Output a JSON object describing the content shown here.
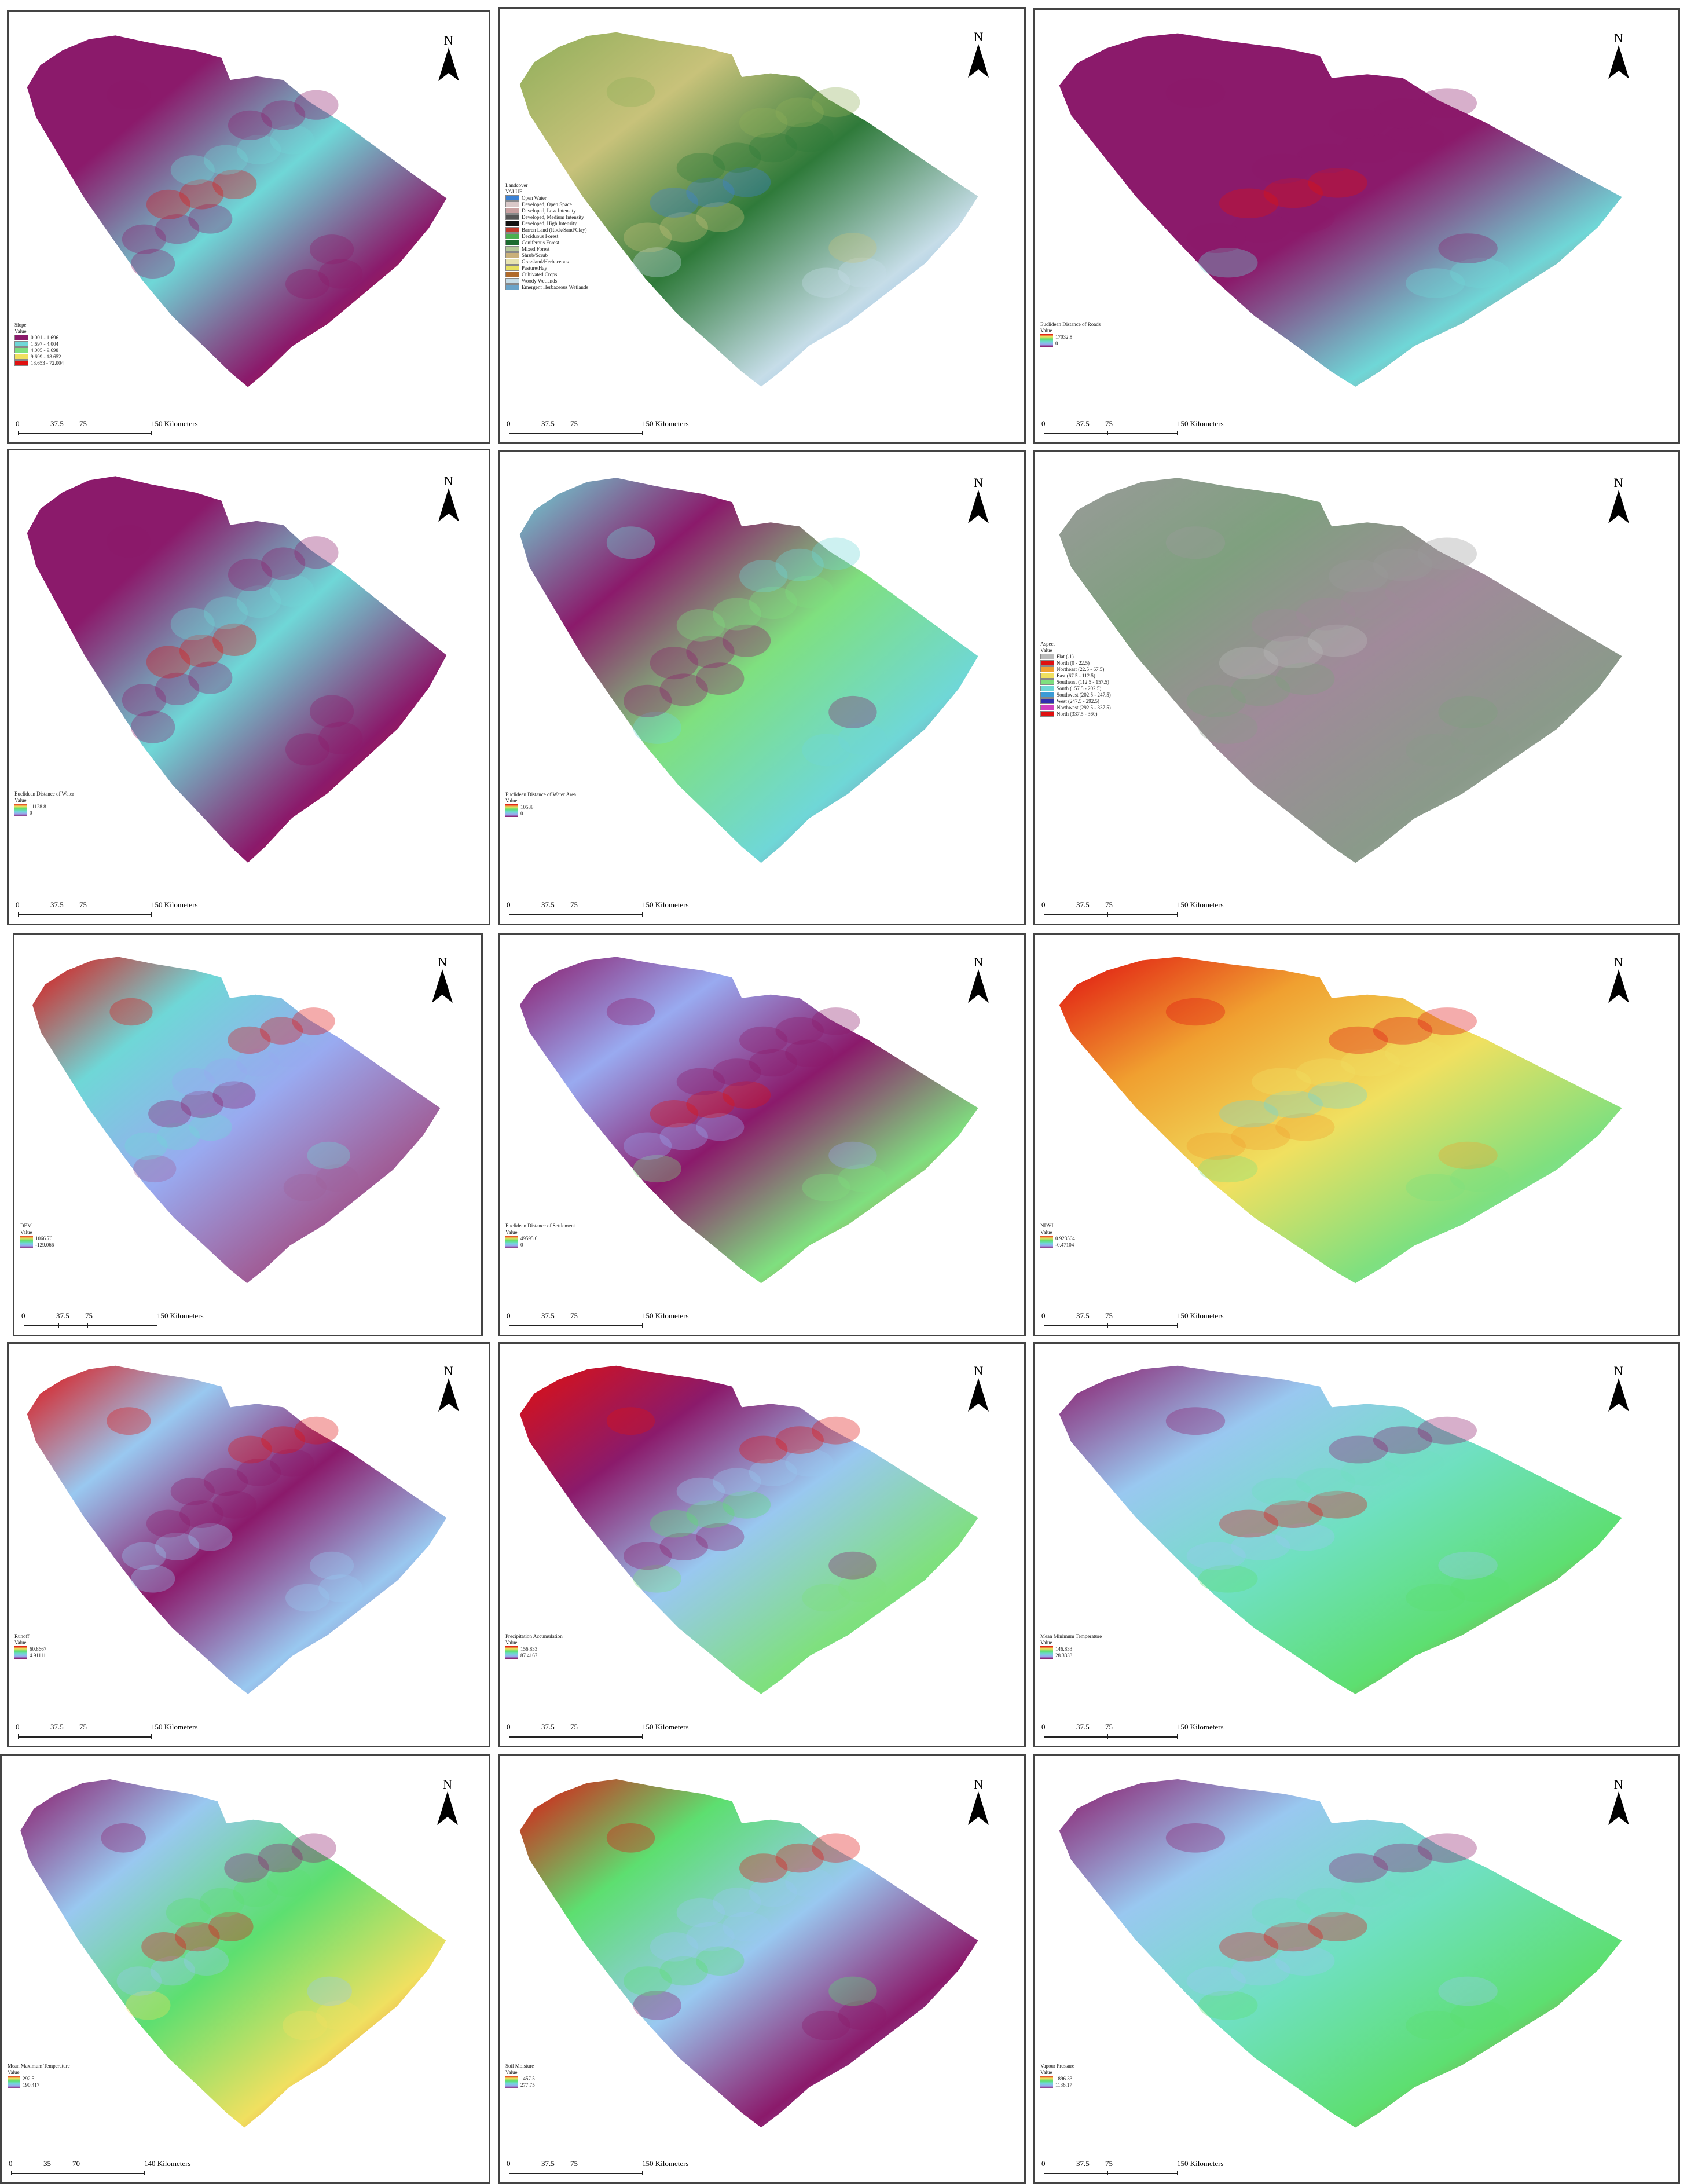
{
  "panels": [
    {
      "legend_title": "Slope",
      "legend_sub": "Value",
      "type": "classes",
      "classes": [
        {
          "label": "0.001 - 1.696",
          "color": "#8b1a6b"
        },
        {
          "label": "1.697 - 4.004",
          "color": "#6fd7d7"
        },
        {
          "label": "4.005 - 9.698",
          "color": "#7fe07f"
        },
        {
          "label": "9.699 - 18.652",
          "color": "#f0e060"
        },
        {
          "label": "18.653 - 72.004",
          "color": "#e01010"
        }
      ],
      "scale": [
        "0",
        "37.5",
        "75",
        "150 Kilometers"
      ],
      "palette": [
        "#8b1a6b",
        "#8b1a6b",
        "#6fd7d7",
        "#8b1a6b",
        "#e01010"
      ]
    },
    {
      "legend_title": "Landcover",
      "legend_sub": "VALUE",
      "type": "classes",
      "classes": [
        {
          "label": "Open Water",
          "color": "#3b82d6"
        },
        {
          "label": "Developed, Open Space",
          "color": "#d9c8c8"
        },
        {
          "label": "Developed, Low Intensity",
          "color": "#c8a0a0"
        },
        {
          "label": "Developed, Medium Intensity",
          "color": "#555555"
        },
        {
          "label": "Developed, High Intensity",
          "color": "#111111"
        },
        {
          "label": "Barren Land (Rock/Sand/Clay)",
          "color": "#c0392b"
        },
        {
          "label": "Deciduous Forest",
          "color": "#4caf50"
        },
        {
          "label": "Coniferous Forest",
          "color": "#1b6b2f"
        },
        {
          "label": "Mixed Forest",
          "color": "#b6c99a"
        },
        {
          "label": "Shrub/Scrub",
          "color": "#c9b07a"
        },
        {
          "label": "Grassland/Herbaceous",
          "color": "#e7e3b0"
        },
        {
          "label": "Pasture/Hay",
          "color": "#e6e060"
        },
        {
          "label": "Cultivated Crops",
          "color": "#b06a2b"
        },
        {
          "label": "Woody Wetlands",
          "color": "#c6dde8"
        },
        {
          "label": "Emergent Herbaceous Wetlands",
          "color": "#6aa3c8"
        }
      ],
      "scale": [
        "0",
        "37.5",
        "75",
        "150 Kilometers"
      ],
      "palette": [
        "#8fae5a",
        "#c8c27a",
        "#2f7a3a",
        "#c6dde8",
        "#3b82d6"
      ]
    },
    {
      "legend_title": "Euclidean Distance of Roads",
      "legend_sub": "Value",
      "type": "gradient",
      "high": "17032.8",
      "low": "0",
      "scale": [
        "0",
        "37.5",
        "75",
        "150 Kilometers"
      ],
      "palette": [
        "#8b1a6b",
        "#8b1a6b",
        "#8b1a6b",
        "#6fd7d7",
        "#e01010"
      ]
    },
    {
      "legend_title": "Euclidean Distance of Water",
      "legend_sub": "Value",
      "type": "gradient",
      "high": "11128.8",
      "low": "0",
      "scale": [
        "0",
        "37.5",
        "75",
        "150 Kilometers"
      ],
      "palette": [
        "#8b1a6b",
        "#8b1a6b",
        "#6fd7d7",
        "#8b1a6b",
        "#e01010"
      ]
    },
    {
      "legend_title": "Euclidean Distance of Water Area",
      "legend_sub": "Value",
      "type": "gradient",
      "high": "10538",
      "low": "0",
      "scale": [
        "0",
        "37.5",
        "75",
        "150 Kilometers"
      ],
      "palette": [
        "#6fd7d7",
        "#8b1a6b",
        "#7fe07f",
        "#6fd7d7",
        "#8b1a6b"
      ]
    },
    {
      "legend_title": "Aspect",
      "legend_sub": "Value",
      "type": "classes",
      "classes": [
        {
          "label": "Flat (-1)",
          "color": "#bbbbbb"
        },
        {
          "label": "North (0 - 22.5)",
          "color": "#e01010"
        },
        {
          "label": "Northeast (22.5 - 67.5)",
          "color": "#f0a030"
        },
        {
          "label": "East (67.5 - 112.5)",
          "color": "#f0e060"
        },
        {
          "label": "Southeast (112.5 - 157.5)",
          "color": "#7fe07f"
        },
        {
          "label": "South (157.5 - 202.5)",
          "color": "#6fd7d7"
        },
        {
          "label": "Southwest (202.5 - 247.5)",
          "color": "#3b9bd6"
        },
        {
          "label": "West (247.5 - 292.5)",
          "color": "#3030b0"
        },
        {
          "label": "Northwest (292.5 - 337.5)",
          "color": "#d040c0"
        },
        {
          "label": "North (337.5 - 360)",
          "color": "#e01010"
        }
      ],
      "scale": [
        "0",
        "37.5",
        "75",
        "150 Kilometers"
      ],
      "palette": [
        "#9a9a9a",
        "#7fa07f",
        "#a08a9a",
        "#8a9a8a",
        "#bbbbbb"
      ]
    },
    {
      "legend_title": "DEM",
      "legend_sub": "Value",
      "type": "gradient",
      "high": "1066.76",
      "low": "-129.066",
      "scale": [
        "0",
        "37.5",
        "75",
        "150 Kilometers"
      ],
      "palette": [
        "#e01010",
        "#6fd7d7",
        "#99aaf0",
        "#a0609a",
        "#8b1a6b"
      ]
    },
    {
      "legend_title": "Euclidean Distance of Settlement",
      "legend_sub": "Value",
      "type": "gradient",
      "high": "49595.6",
      "low": "0",
      "scale": [
        "0",
        "37.5",
        "75",
        "150 Kilometers"
      ],
      "palette": [
        "#8b1a6b",
        "#99aaf0",
        "#8b1a6b",
        "#7fe07f",
        "#e01010"
      ]
    },
    {
      "legend_title": "NDVI",
      "legend_sub": "Value",
      "type": "gradient",
      "high": "0.923564",
      "low": "-0.47104",
      "scale": [
        "0",
        "37.5",
        "75",
        "150 Kilometers"
      ],
      "palette": [
        "#e01010",
        "#f0a030",
        "#f0e060",
        "#7fe07f",
        "#6fd7d7"
      ]
    },
    {
      "legend_title": "Runoff",
      "legend_sub": "Value",
      "type": "gradient",
      "high": "60.8667",
      "low": "4.91111",
      "scale": [
        "0",
        "37.5",
        "75",
        "150 Kilometers"
      ],
      "palette": [
        "#e01010",
        "#99c8f0",
        "#8b1a6b",
        "#99c8f0",
        "#8b1a6b"
      ]
    },
    {
      "legend_title": "Precipitation Accumulation",
      "legend_sub": "Value",
      "type": "gradient",
      "high": "156.833",
      "low": "87.4167",
      "scale": [
        "0",
        "37.5",
        "75",
        "150 Kilometers"
      ],
      "palette": [
        "#e01010",
        "#8b1a6b",
        "#99c8f0",
        "#7fe07f",
        "#5ddf70"
      ]
    },
    {
      "legend_title": "Mean Minimum Temperature",
      "legend_sub": "Value",
      "type": "gradient",
      "high": "146.833",
      "low": "28.3333",
      "scale": [
        "0",
        "37.5",
        "75",
        "150 Kilometers"
      ],
      "palette": [
        "#8b1a6b",
        "#99c8f0",
        "#6fe0c0",
        "#5ddf70",
        "#e01010"
      ]
    },
    {
      "legend_title": "Mean Maximum Temperature",
      "legend_sub": "Value",
      "type": "gradient",
      "high": "292.5",
      "low": "190.417",
      "scale": [
        "0",
        "35",
        "70",
        "140 Kilometers"
      ],
      "palette": [
        "#8b1a6b",
        "#99c8f0",
        "#5ddf70",
        "#f0e060",
        "#e01010"
      ]
    },
    {
      "legend_title": "Soil Moisture",
      "legend_sub": "Value",
      "type": "gradient",
      "high": "1457.5",
      "low": "277.75",
      "scale": [
        "0",
        "37.5",
        "75",
        "150 Kilometers"
      ],
      "palette": [
        "#e01010",
        "#5ddf70",
        "#99c8f0",
        "#8b1a6b",
        "#99c8f0"
      ]
    },
    {
      "legend_title": "Vapour Pressure",
      "legend_sub": "Value",
      "type": "gradient",
      "high": "1896.33",
      "low": "1136.17",
      "scale": [
        "0",
        "37.5",
        "75",
        "150 Kilometers"
      ],
      "palette": [
        "#8b1a6b",
        "#99c8f0",
        "#6fe0c0",
        "#5ddf70",
        "#e01010"
      ]
    }
  ],
  "north_label": "N"
}
